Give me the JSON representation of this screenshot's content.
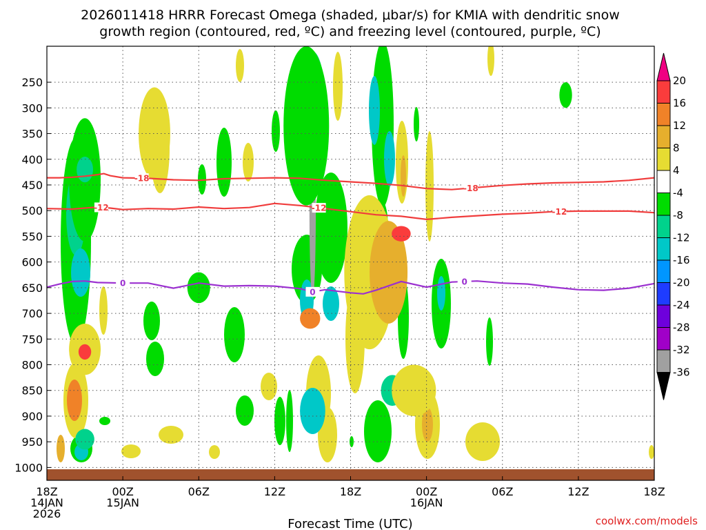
{
  "chart_data": {
    "type": "heatmap",
    "title_line1": "2026011418 HRRR Forecast Omega (shaded, μbar/s) for KMIA with dendritic snow",
    "title_line2": "growth region (contoured, red, ºC) and freezing level (contoured, purple, ºC)",
    "xlabel": "Forecast Time (UTC)",
    "ylabel": "",
    "xlim": [
      0,
      48
    ],
    "ylim": [
      1025,
      180
    ],
    "y_ticks": [
      250,
      300,
      350,
      400,
      450,
      500,
      550,
      600,
      650,
      700,
      750,
      800,
      850,
      900,
      950,
      1000
    ],
    "x_ticks": [
      {
        "hour": 0,
        "lines": [
          "18Z",
          "14JAN",
          "2026"
        ]
      },
      {
        "hour": 6,
        "lines": [
          "00Z",
          "15JAN"
        ]
      },
      {
        "hour": 12,
        "lines": [
          "06Z"
        ]
      },
      {
        "hour": 18,
        "lines": [
          "12Z"
        ]
      },
      {
        "hour": 24,
        "lines": [
          "18Z"
        ]
      },
      {
        "hour": 30,
        "lines": [
          "00Z",
          "16JAN"
        ]
      },
      {
        "hour": 36,
        "lines": [
          "06Z"
        ]
      },
      {
        "hour": 42,
        "lines": [
          "12Z"
        ]
      },
      {
        "hour": 48,
        "lines": [
          "18Z"
        ]
      }
    ],
    "colorbar": {
      "levels": [
        -36,
        -32,
        -28,
        -24,
        -20,
        -16,
        -12,
        -8,
        -4,
        4,
        8,
        12,
        16,
        20
      ],
      "colors": [
        "#000000",
        "#a0a0a0",
        "#a000c8",
        "#6e00dc",
        "#1e3cff",
        "#0096ff",
        "#00c8c8",
        "#00d28c",
        "#00dc00",
        "#ffffff",
        "#e6dc32",
        "#e6af2d",
        "#f08228",
        "#fa3c3c",
        "#f00082"
      ]
    },
    "contours": [
      {
        "name": "-18",
        "color": "#f03c3c",
        "label_hours": [
          7.5,
          33.5
        ],
        "points": [
          [
            0,
            436
          ],
          [
            1,
            436
          ],
          [
            2,
            435
          ],
          [
            3,
            433
          ],
          [
            4,
            430
          ],
          [
            4.5,
            428
          ],
          [
            5,
            432
          ],
          [
            6,
            436
          ],
          [
            8,
            437
          ],
          [
            10,
            440
          ],
          [
            12,
            441
          ],
          [
            14,
            438
          ],
          [
            16,
            437
          ],
          [
            18,
            436
          ],
          [
            20,
            437
          ],
          [
            22,
            441
          ],
          [
            24,
            444
          ],
          [
            26,
            447
          ],
          [
            28,
            451
          ],
          [
            30,
            457
          ],
          [
            32,
            459
          ],
          [
            34,
            455
          ],
          [
            36,
            451
          ],
          [
            38,
            448
          ],
          [
            40,
            446
          ],
          [
            42,
            445
          ],
          [
            44,
            444
          ],
          [
            46,
            441
          ],
          [
            48,
            436
          ]
        ]
      },
      {
        "name": "-12",
        "color": "#f03c3c",
        "label_hours": [
          4.3,
          21.5,
          40.5
        ],
        "points": [
          [
            0,
            496
          ],
          [
            2,
            497
          ],
          [
            4,
            493
          ],
          [
            5,
            495
          ],
          [
            6,
            498
          ],
          [
            8,
            496
          ],
          [
            10,
            497
          ],
          [
            12,
            493
          ],
          [
            14,
            496
          ],
          [
            16,
            494
          ],
          [
            18,
            486
          ],
          [
            20,
            490
          ],
          [
            22,
            496
          ],
          [
            24,
            502
          ],
          [
            26,
            508
          ],
          [
            28,
            511
          ],
          [
            30,
            517
          ],
          [
            32,
            513
          ],
          [
            34,
            510
          ],
          [
            36,
            507
          ],
          [
            38,
            505
          ],
          [
            40,
            502
          ],
          [
            42,
            501
          ],
          [
            44,
            501
          ],
          [
            46,
            501
          ],
          [
            48,
            504
          ]
        ]
      },
      {
        "name": "0",
        "color": "#9b30d0",
        "label_hours": [
          6,
          21,
          33
        ],
        "points": [
          [
            0,
            649
          ],
          [
            1,
            643
          ],
          [
            2,
            638
          ],
          [
            3,
            637
          ],
          [
            4,
            640
          ],
          [
            6,
            641
          ],
          [
            8,
            641
          ],
          [
            10,
            651
          ],
          [
            12,
            641
          ],
          [
            14,
            647
          ],
          [
            16,
            646
          ],
          [
            18,
            647
          ],
          [
            20,
            652
          ],
          [
            21,
            658
          ],
          [
            22,
            654
          ],
          [
            24,
            660
          ],
          [
            25,
            662
          ],
          [
            26,
            655
          ],
          [
            28,
            638
          ],
          [
            30,
            649
          ],
          [
            32,
            639
          ],
          [
            34,
            637
          ],
          [
            36,
            641
          ],
          [
            38,
            643
          ],
          [
            40,
            649
          ],
          [
            42,
            654
          ],
          [
            44,
            655
          ],
          [
            46,
            651
          ],
          [
            48,
            642
          ]
        ]
      }
    ],
    "omega_regions": [
      {
        "hour": 21.0,
        "p": [
          330,
          670
        ],
        "w": 0.5,
        "value": -36
      },
      {
        "hour": 21.0,
        "p": [
          218,
          442
        ],
        "w": 0.9,
        "value": -32
      },
      {
        "hour": 21.0,
        "p": [
          215,
          445
        ],
        "w": 1.3,
        "value": -24
      },
      {
        "hour": 21.0,
        "p": [
          190,
          470
        ],
        "w": 2.3,
        "value": -12
      },
      {
        "hour": 20.5,
        "p": [
          180,
          490
        ],
        "w": 3.6,
        "value": -6
      },
      {
        "hour": 21.0,
        "p": [
          858,
          916
        ],
        "w": 1.0,
        "value": -36
      },
      {
        "hour": 21.0,
        "p": [
          850,
          925
        ],
        "w": 1.4,
        "value": -28
      },
      {
        "hour": 21.0,
        "p": [
          845,
          935
        ],
        "w": 2.0,
        "value": -16
      },
      {
        "hour": 3.0,
        "p": [
          320,
          560
        ],
        "w": 2.5,
        "value": -6
      },
      {
        "hour": 3.0,
        "p": [
          395,
          445
        ],
        "w": 1.3,
        "value": -12
      },
      {
        "hour": 3.0,
        "p": [
          925,
          965
        ],
        "w": 1.5,
        "value": -12
      },
      {
        "hour": 12.0,
        "p": [
          620,
          680
        ],
        "w": 1.8,
        "value": -6
      },
      {
        "hour": 27.3,
        "p": [
          820,
          880
        ],
        "w": 1.8,
        "value": -12
      },
      {
        "hour": 41.0,
        "p": [
          250,
          300
        ],
        "w": 1.0,
        "value": -6
      },
      {
        "hour": 3.0,
        "p": [
          720,
          820
        ],
        "w": 2.5,
        "value": 6
      },
      {
        "hour": 3.0,
        "p": [
          760,
          790
        ],
        "w": 1.0,
        "value": 16
      },
      {
        "hour": 8.5,
        "p": [
          260,
          440
        ],
        "w": 2.5,
        "value": 6
      },
      {
        "hour": 20.8,
        "p": [
          690,
          730
        ],
        "w": 1.6,
        "value": 12
      },
      {
        "hour": 25.5,
        "p": [
          470,
          770
        ],
        "w": 4.0,
        "value": 6
      },
      {
        "hour": 27.0,
        "p": [
          520,
          720
        ],
        "w": 3.0,
        "value": 10
      },
      {
        "hour": 28.0,
        "p": [
          530,
          560
        ],
        "w": 1.5,
        "value": 16
      },
      {
        "hour": 29.0,
        "p": [
          800,
          900
        ],
        "w": 3.5,
        "value": 6
      }
    ]
  },
  "credit": "coolwx.com/models"
}
